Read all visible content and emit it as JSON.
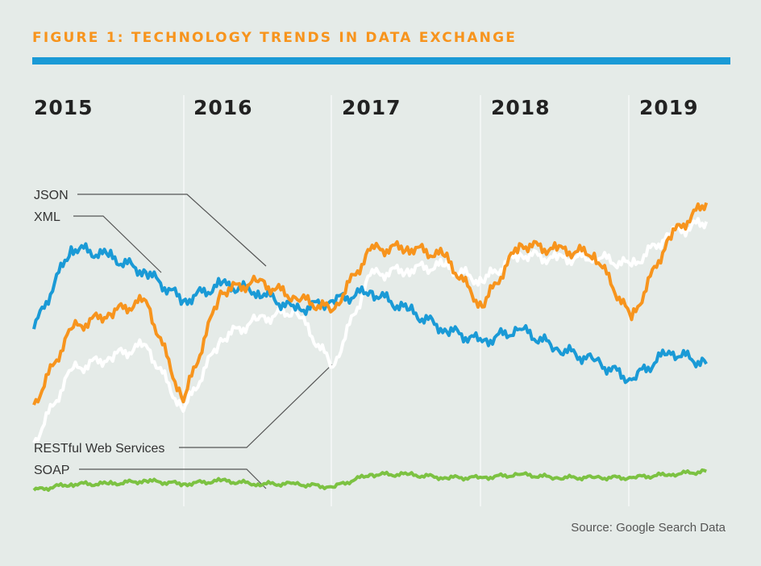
{
  "title": "FIGURE 1: TECHNOLOGY TRENDS IN DATA EXCHANGE",
  "source": "Source: Google Search Data",
  "colors": {
    "title": "#f7941d",
    "rule": "#1a9ad6",
    "background": "#e5ebe8",
    "JSON": "#f7941d",
    "XML": "#1a9ad6",
    "RESTful Web Services": "#ffffff",
    "SOAP": "#7cc242"
  },
  "chart_data": {
    "type": "line",
    "title": "FIGURE 1: TECHNOLOGY TRENDS IN DATA EXCHANGE",
    "xlabel": "",
    "ylabel": "",
    "years": [
      "2015",
      "2016",
      "2017",
      "2018",
      "2019"
    ],
    "x": [
      2015.0,
      2015.25,
      2015.5,
      2015.75,
      2016.0,
      2016.25,
      2016.5,
      2016.75,
      2017.0,
      2017.25,
      2017.5,
      2017.75,
      2018.0,
      2018.25,
      2018.5,
      2018.75,
      2019.0,
      2019.25,
      2019.5
    ],
    "xlim": [
      2015.0,
      2019.65
    ],
    "ylim": [
      0,
      100
    ],
    "grid": "vertical year lines",
    "legend": "left-side callout labels",
    "series": [
      {
        "name": "JSON",
        "values": [
          28,
          52,
          57,
          61,
          29,
          64,
          67,
          62,
          58,
          77,
          78,
          75,
          59,
          79,
          77,
          76,
          55,
          81,
          92
        ]
      },
      {
        "name": "XML",
        "values": [
          52,
          78,
          75,
          70,
          61,
          66,
          64,
          58,
          61,
          64,
          58,
          52,
          48,
          52,
          46,
          42,
          36,
          45,
          41
        ]
      },
      {
        "name": "RESTful Web Services",
        "values": [
          16,
          39,
          43,
          47,
          26,
          49,
          55,
          58,
          40,
          69,
          71,
          72,
          67,
          76,
          74,
          75,
          72,
          82,
          86
        ]
      },
      {
        "name": "SOAP",
        "values": [
          1,
          3,
          3,
          4,
          3,
          4,
          3,
          3,
          2,
          6,
          6,
          5,
          5,
          6,
          5,
          5,
          5,
          6,
          7
        ]
      }
    ]
  }
}
